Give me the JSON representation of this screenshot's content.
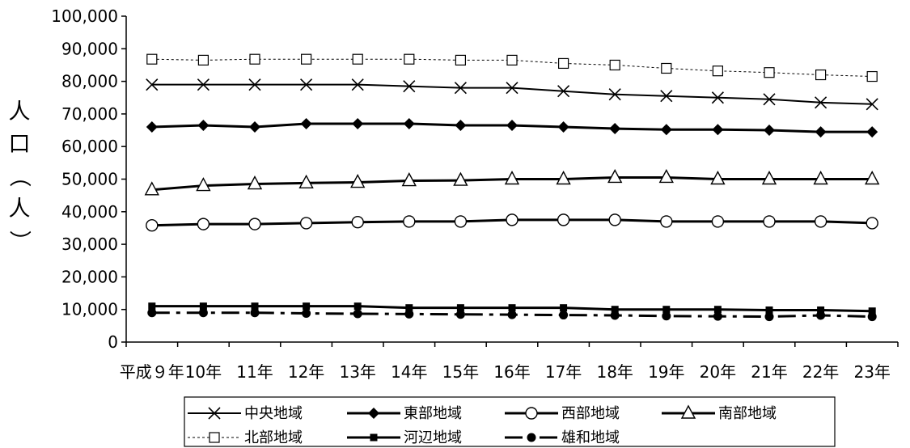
{
  "chart_data": {
    "type": "line",
    "categories": [
      "平成９年",
      "10年",
      "11年",
      "12年",
      "13年",
      "14年",
      "15年",
      "16年",
      "17年",
      "18年",
      "19年",
      "20年",
      "21年",
      "22年",
      "23年"
    ],
    "ylabel": "人口（人）",
    "ylabel_chars": [
      "人",
      "口",
      "（",
      "人",
      "）"
    ],
    "ylim": [
      0,
      100000
    ],
    "yticks": [
      "0",
      "10,000",
      "20,000",
      "30,000",
      "40,000",
      "50,000",
      "60,000",
      "70,000",
      "80,000",
      "90,000",
      "100,000"
    ],
    "grid": false,
    "legend_position": "bottom",
    "series": [
      {
        "name": "中央地域",
        "marker": "x",
        "dash": "solid",
        "width": 2,
        "values": [
          79000,
          79000,
          79000,
          79000,
          79000,
          78500,
          78000,
          78000,
          77000,
          76000,
          75500,
          75000,
          74500,
          73500,
          73000
        ]
      },
      {
        "name": "東部地域",
        "marker": "diamond",
        "dash": "solid",
        "width": 3,
        "values": [
          66000,
          66500,
          66000,
          67000,
          67000,
          67000,
          66500,
          66500,
          66000,
          65500,
          65200,
          65200,
          65000,
          64500,
          64500
        ]
      },
      {
        "name": "西部地域",
        "marker": "circle",
        "dash": "solid",
        "width": 3,
        "values": [
          35800,
          36200,
          36200,
          36500,
          36800,
          37000,
          37000,
          37500,
          37500,
          37500,
          37000,
          37000,
          37000,
          37000,
          36500
        ]
      },
      {
        "name": "南部地域",
        "marker": "triangle",
        "dash": "solid",
        "width": 3,
        "values": [
          46700,
          48000,
          48500,
          48800,
          49000,
          49500,
          49600,
          50000,
          50000,
          50500,
          50500,
          50000,
          50000,
          50000,
          50000
        ]
      },
      {
        "name": "北部地域",
        "marker": "square",
        "dash": "dotted",
        "width": 1,
        "values": [
          86800,
          86500,
          86800,
          86800,
          86800,
          86800,
          86500,
          86500,
          85500,
          85000,
          84000,
          83200,
          82700,
          82000,
          81500
        ]
      },
      {
        "name": "河辺地域",
        "marker": "smallsquare",
        "dash": "solid",
        "width": 3,
        "values": [
          11000,
          11000,
          11000,
          11000,
          11000,
          10500,
          10500,
          10500,
          10500,
          10000,
          10000,
          10000,
          9800,
          9800,
          9500
        ]
      },
      {
        "name": "雄和地域",
        "marker": "dot",
        "dash": "dashdot",
        "width": 3,
        "values": [
          9000,
          9000,
          9000,
          8800,
          8700,
          8600,
          8500,
          8400,
          8300,
          8200,
          8000,
          7900,
          7800,
          8200,
          7800
        ]
      }
    ]
  }
}
